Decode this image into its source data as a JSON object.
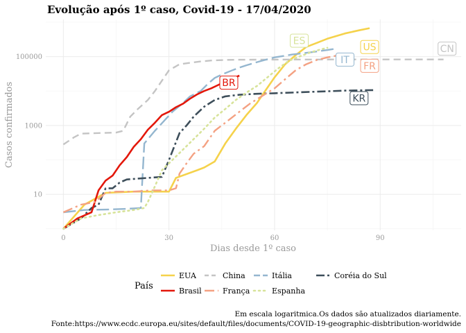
{
  "chart_data": {
    "type": "line",
    "title": "Evolução após 1º caso, Covid-19 -  17/04/2020",
    "xlabel": "Dias desde 1º caso",
    "ylabel": "Casos confirmados",
    "scale_y": "log10",
    "xlim": [
      -5,
      113
    ],
    "ylim": [
      0.9,
      1200000
    ],
    "x_ticks": [
      0,
      30,
      60,
      90
    ],
    "y_ticks": [
      10,
      1000,
      100000
    ],
    "y_tick_labels": [
      "10",
      "1000",
      "100000"
    ],
    "grid": true,
    "legend_title": "País",
    "legend_position": "bottom",
    "caption_line1": "Em escala logaritmica.Os dados são atualizados diariamente.",
    "caption_line2": "Fonte:https://www.ecdc.europa.eu/sites/default/files/documents/COVID-19-geographic-disbtribution-worldwide",
    "series": [
      {
        "name": "EUA",
        "label": "US",
        "color": "#f5d24b",
        "dash": "solid",
        "width": 2.6,
        "label_at": [
          87,
          190000
        ],
        "points": [
          [
            0,
            1
          ],
          [
            6,
            5
          ],
          [
            12,
            11
          ],
          [
            20,
            12
          ],
          [
            30,
            12
          ],
          [
            32,
            30
          ],
          [
            38,
            50
          ],
          [
            40,
            60
          ],
          [
            43,
            90
          ],
          [
            46,
            300
          ],
          [
            49,
            800
          ],
          [
            52,
            2000
          ],
          [
            55,
            4500
          ],
          [
            57,
            9000
          ],
          [
            60,
            25000
          ],
          [
            63,
            60000
          ],
          [
            66,
            110000
          ],
          [
            69,
            190000
          ],
          [
            72,
            250000
          ],
          [
            75,
            330000
          ],
          [
            80,
            470000
          ],
          [
            84,
            580000
          ],
          [
            87,
            670000
          ]
        ]
      },
      {
        "name": "China",
        "label": "CN",
        "color": "#c4c4c4",
        "dash": "10,6",
        "width": 2.4,
        "label_at": [
          109,
          170000
        ],
        "points": [
          [
            0,
            280
          ],
          [
            3,
            450
          ],
          [
            5,
            580
          ],
          [
            10,
            600
          ],
          [
            15,
            620
          ],
          [
            17,
            700
          ],
          [
            19,
            1800
          ],
          [
            21,
            2900
          ],
          [
            24,
            5500
          ],
          [
            26,
            10000
          ],
          [
            28,
            20000
          ],
          [
            30,
            40000
          ],
          [
            33,
            60000
          ],
          [
            36,
            66000
          ],
          [
            39,
            72000
          ],
          [
            42,
            77000
          ],
          [
            46,
            80000
          ],
          [
            50,
            81000
          ],
          [
            55,
            81500
          ],
          [
            60,
            81600
          ],
          [
            70,
            82000
          ],
          [
            80,
            82600
          ],
          [
            90,
            82700
          ],
          [
            100,
            82700
          ],
          [
            108,
            82700
          ]
        ]
      },
      {
        "name": "Itália",
        "label": "IT",
        "color": "#94b6cf",
        "dash": "18,6",
        "width": 2.4,
        "label_at": [
          80,
          82000
        ],
        "points": [
          [
            0,
            3
          ],
          [
            6,
            3.5
          ],
          [
            12,
            3.6
          ],
          [
            18,
            3.8
          ],
          [
            22,
            4
          ],
          [
            23,
            300
          ],
          [
            26,
            700
          ],
          [
            29,
            1500
          ],
          [
            31,
            2500
          ],
          [
            34,
            4500
          ],
          [
            36,
            7000
          ],
          [
            39,
            10000
          ],
          [
            41,
            16000
          ],
          [
            43,
            24000
          ],
          [
            45,
            30000
          ],
          [
            48,
            40000
          ],
          [
            50,
            48000
          ],
          [
            52,
            56000
          ],
          [
            56,
            74000
          ],
          [
            60,
            95000
          ],
          [
            65,
            115000
          ],
          [
            70,
            132000
          ],
          [
            75,
            155000
          ],
          [
            77,
            168000
          ]
        ]
      },
      {
        "name": "Coréia do Sul",
        "label": "KR",
        "color": "#3d4e5a",
        "dash": "12,4,3,4",
        "width": 2.6,
        "label_at": [
          84,
          6200
        ],
        "points": [
          [
            0,
            1
          ],
          [
            5,
            2
          ],
          [
            8,
            4
          ],
          [
            10,
            5
          ],
          [
            12,
            15
          ],
          [
            14,
            15
          ],
          [
            16,
            22
          ],
          [
            18,
            27
          ],
          [
            20,
            28
          ],
          [
            26,
            31
          ],
          [
            28,
            32
          ],
          [
            30,
            100
          ],
          [
            33,
            600
          ],
          [
            35,
            1000
          ],
          [
            37,
            1800
          ],
          [
            40,
            3500
          ],
          [
            43,
            5500
          ],
          [
            46,
            7000
          ],
          [
            50,
            7800
          ],
          [
            55,
            8300
          ],
          [
            60,
            8600
          ],
          [
            70,
            9400
          ],
          [
            80,
            10300
          ],
          [
            88,
            10600
          ]
        ]
      },
      {
        "name": "Brasil",
        "label": "BR",
        "color": "#e3170a",
        "dash": "solid",
        "width": 2.6,
        "label_at": [
          47,
          17500
        ],
        "points": [
          [
            0,
            1
          ],
          [
            4,
            2
          ],
          [
            8,
            3
          ],
          [
            10,
            13
          ],
          [
            12,
            25
          ],
          [
            14,
            35
          ],
          [
            16,
            70
          ],
          [
            18,
            120
          ],
          [
            20,
            240
          ],
          [
            22,
            400
          ],
          [
            24,
            750
          ],
          [
            26,
            1200
          ],
          [
            28,
            2000
          ],
          [
            30,
            2500
          ],
          [
            32,
            3400
          ],
          [
            34,
            4300
          ],
          [
            36,
            6000
          ],
          [
            38,
            8000
          ],
          [
            40,
            10000
          ],
          [
            42,
            12000
          ],
          [
            44,
            15000
          ],
          [
            46,
            19000
          ],
          [
            48,
            23000
          ],
          [
            50,
            28000
          ]
        ]
      },
      {
        "name": "França",
        "label": "FR",
        "color": "#f4a182",
        "dash": "14,5,3,5",
        "width": 2.4,
        "label_at": [
          87,
          54000
        ],
        "points": [
          [
            0,
            3
          ],
          [
            5,
            5
          ],
          [
            9,
            6
          ],
          [
            12,
            11
          ],
          [
            15,
            12
          ],
          [
            20,
            12
          ],
          [
            25,
            13
          ],
          [
            30,
            13
          ],
          [
            32,
            15
          ],
          [
            33,
            40
          ],
          [
            35,
            80
          ],
          [
            37,
            150
          ],
          [
            40,
            250
          ],
          [
            43,
            700
          ],
          [
            46,
            1200
          ],
          [
            50,
            2500
          ],
          [
            53,
            4300
          ],
          [
            56,
            6700
          ],
          [
            60,
            12000
          ],
          [
            63,
            22000
          ],
          [
            66,
            40000
          ],
          [
            69,
            60000
          ],
          [
            72,
            80000
          ],
          [
            75,
            95000
          ],
          [
            78,
            108000
          ]
        ]
      },
      {
        "name": "Espanha",
        "label": "ES",
        "color": "#d7e39a",
        "dash": "2,5",
        "width": 2.6,
        "label_at": [
          67,
          290000
        ],
        "points": [
          [
            0,
            1
          ],
          [
            5,
            2
          ],
          [
            10,
            2.5
          ],
          [
            15,
            3
          ],
          [
            20,
            3.5
          ],
          [
            23,
            4
          ],
          [
            24,
            6
          ],
          [
            25,
            10
          ],
          [
            28,
            50
          ],
          [
            31,
            100
          ],
          [
            34,
            200
          ],
          [
            37,
            400
          ],
          [
            40,
            800
          ],
          [
            43,
            1700
          ],
          [
            46,
            3000
          ],
          [
            49,
            5500
          ],
          [
            52,
            9000
          ],
          [
            55,
            14000
          ],
          [
            58,
            25000
          ],
          [
            61,
            45000
          ],
          [
            64,
            75000
          ],
          [
            67,
            100000
          ],
          [
            70,
            130000
          ],
          [
            73,
            160000
          ],
          [
            75,
            180000
          ]
        ]
      }
    ]
  }
}
